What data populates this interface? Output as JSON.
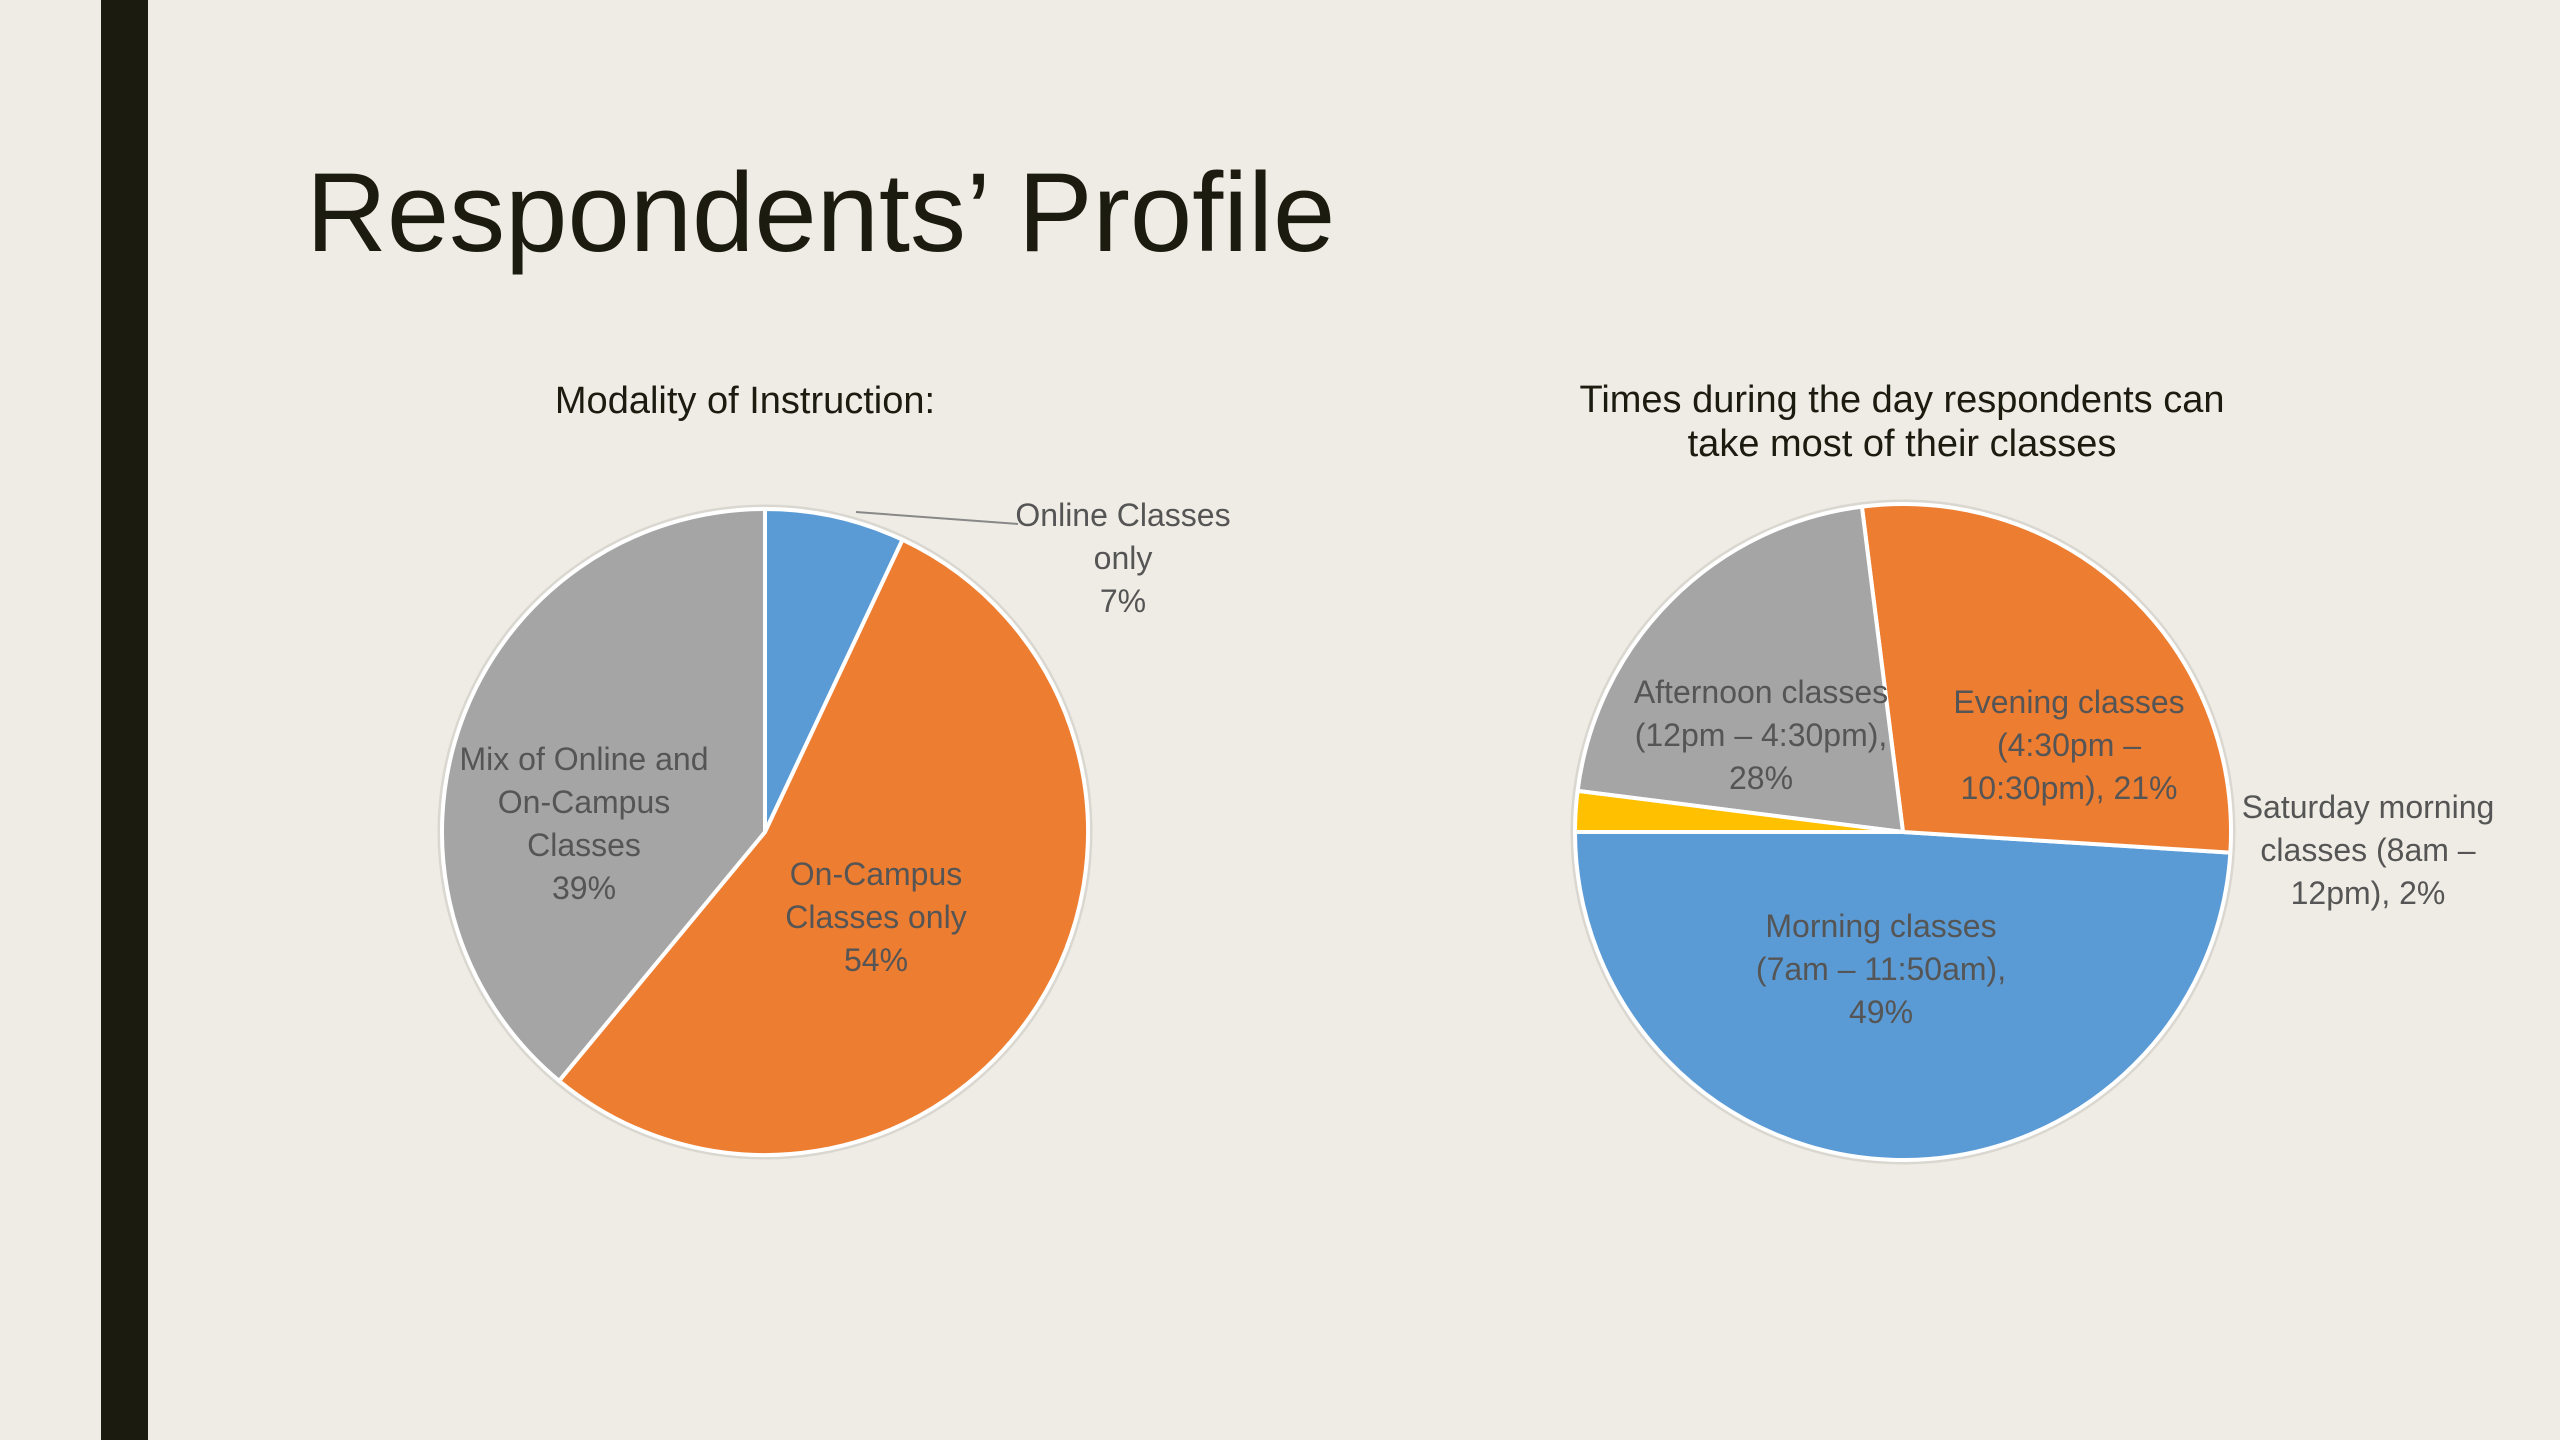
{
  "slide": {
    "title": "Respondents’ Profile",
    "background": "#eeece4",
    "accent": "#1b1b10"
  },
  "chart_data": [
    {
      "type": "pie",
      "title": [
        "Modality of Instruction:"
      ],
      "slices": [
        {
          "label": [
            "Online Classes",
            "only",
            "7%"
          ],
          "value": 7,
          "color": "#5b9bd5"
        },
        {
          "label": [
            "On-Campus",
            "Classes only",
            "54%"
          ],
          "value": 54,
          "color": "#ed7d31"
        },
        {
          "label": [
            "Mix of Online and",
            "On-Campus",
            "Classes",
            "39%"
          ],
          "value": 39,
          "color": "#a5a5a5"
        }
      ]
    },
    {
      "type": "pie",
      "title": [
        "Times during the day respondents can",
        "take most of their classes"
      ],
      "slices": [
        {
          "label": [
            "Morning classes",
            "(7am – 11:50am),",
            "49%"
          ],
          "value": 49,
          "color": "#5b9bd5"
        },
        {
          "label": [
            "Afternoon classes",
            "(12pm – 4:30pm),",
            "28%"
          ],
          "value": 28,
          "color": "#ed7d31"
        },
        {
          "label": [
            "Evening classes",
            "(4:30pm –",
            "10:30pm), 21%"
          ],
          "value": 21,
          "color": "#a5a5a5"
        },
        {
          "label": [
            "Saturday morning",
            "classes (8am –",
            "12pm), 2%"
          ],
          "value": 2,
          "color": "#ffc000"
        }
      ]
    }
  ]
}
